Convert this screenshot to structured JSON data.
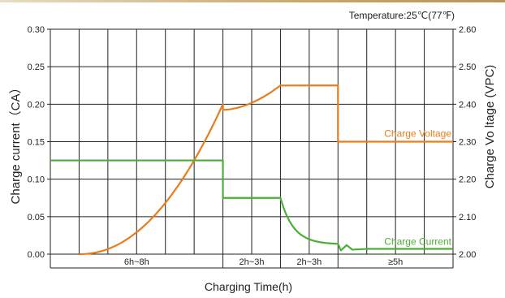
{
  "chart_data": {
    "type": "line",
    "title": "Temperature:25℃(77℉)",
    "xlabel": "Charging Time(h)",
    "ylabel": "Charge  current（CA）",
    "y2label": "Charge Vo ltage (VPC)",
    "ylim": [
      0,
      0.3
    ],
    "y2lim": [
      2.0,
      2.6
    ],
    "yticks": [
      "0.00",
      "0.05",
      "0.10",
      "0.15",
      "0.20",
      "0.25",
      "0.30"
    ],
    "y2ticks": [
      "2.00",
      "2.10",
      "2.20",
      "2.30",
      "2.40",
      "2.50",
      "2.60"
    ],
    "grid": true,
    "phases": [
      {
        "label": "6h~8h",
        "from": 0,
        "to": 6
      },
      {
        "label": "2h~3h",
        "from": 6,
        "to": 8
      },
      {
        "label": "2h~3h",
        "from": 8,
        "to": 10
      },
      {
        "label": "≥5h",
        "from": 10,
        "to": 14
      }
    ],
    "series": [
      {
        "name": "Charge Voltage",
        "axis": "right",
        "color": "#e87d1e",
        "x": [
          1,
          2,
          3,
          4,
          5,
          6,
          6.1,
          7,
          8,
          8.1,
          10,
          10.1,
          14
        ],
        "y": [
          2.0,
          2.02,
          2.07,
          2.14,
          2.24,
          2.4,
          2.385,
          2.395,
          2.45,
          2.45,
          2.45,
          2.3,
          2.3
        ]
      },
      {
        "name": "Charge Current",
        "axis": "left",
        "color": "#4caf35",
        "x": [
          0,
          6,
          6.05,
          8,
          8.3,
          8.6,
          9,
          9.5,
          10,
          10.2,
          10.4,
          10.6,
          11,
          14
        ],
        "y": [
          0.125,
          0.125,
          0.075,
          0.075,
          0.05,
          0.035,
          0.025,
          0.018,
          0.015,
          0.005,
          0.012,
          0.006,
          0.007,
          0.007
        ]
      }
    ],
    "annotations": [
      {
        "text": "Charge Voltage",
        "series": "Charge Voltage"
      },
      {
        "text": "Charge Current",
        "series": "Charge Current"
      }
    ]
  }
}
